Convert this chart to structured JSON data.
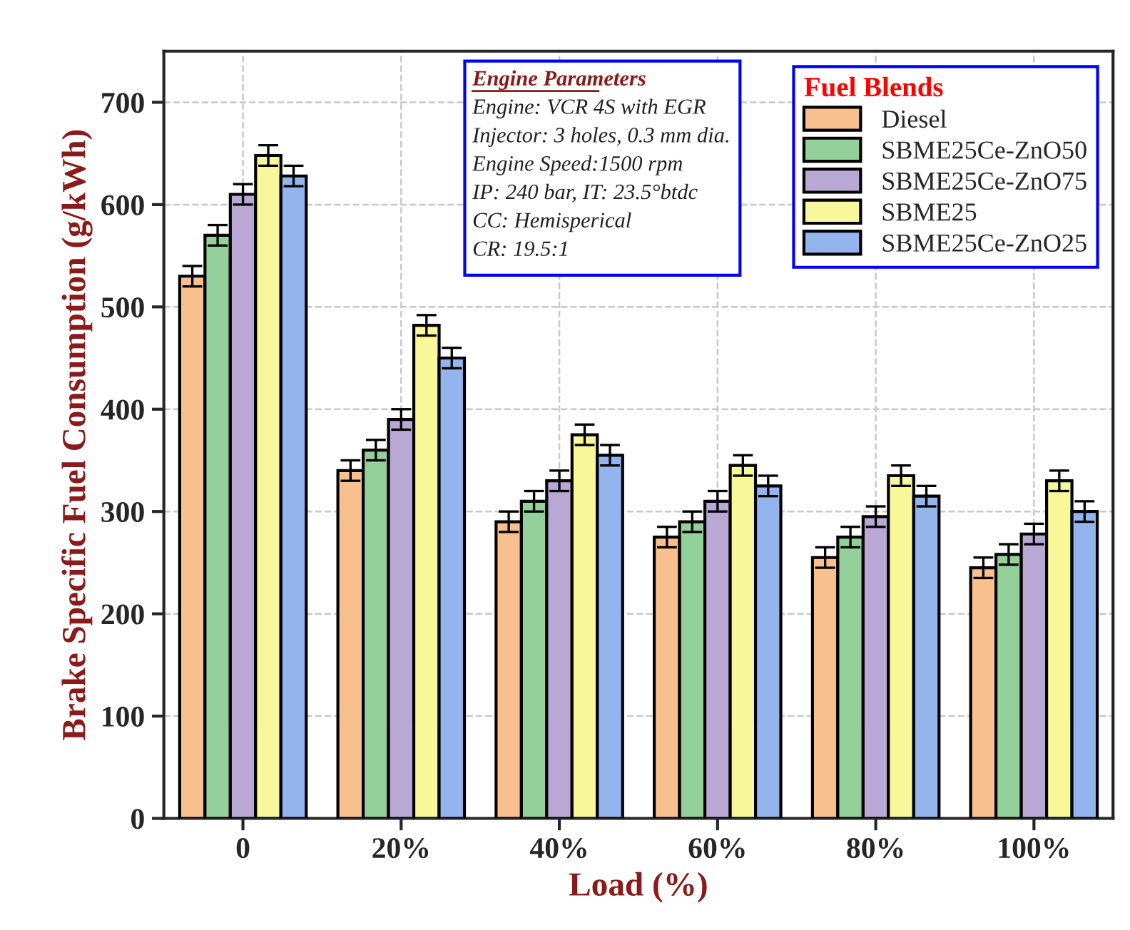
{
  "chart_data": {
    "type": "bar",
    "xlabel": "Load (%)",
    "ylabel": "Brake Specific Fuel Consumption (g/kWh)",
    "legend_title": "Fuel Blends",
    "categories": [
      "0",
      "20%",
      "40%",
      "60%",
      "80%",
      "100%"
    ],
    "series": [
      {
        "name": "Diesel",
        "color": "#f9c08f",
        "values": [
          530,
          340,
          290,
          275,
          255,
          245
        ],
        "errors": [
          10,
          10,
          10,
          10,
          10,
          10
        ]
      },
      {
        "name": "SBME25Ce-ZnO50",
        "color": "#93d09a",
        "values": [
          570,
          360,
          310,
          290,
          275,
          258
        ],
        "errors": [
          10,
          10,
          10,
          10,
          10,
          10
        ]
      },
      {
        "name": "SBME25Ce-ZnO75",
        "color": "#b9a8d4",
        "values": [
          610,
          390,
          330,
          310,
          295,
          278
        ],
        "errors": [
          10,
          10,
          10,
          10,
          10,
          10
        ]
      },
      {
        "name": "SBME25",
        "color": "#f8f79a",
        "values": [
          648,
          482,
          375,
          345,
          335,
          330
        ],
        "errors": [
          10,
          10,
          10,
          10,
          10,
          10
        ]
      },
      {
        "name": "SBME25Ce-ZnO25",
        "color": "#93b4ec",
        "values": [
          628,
          450,
          355,
          325,
          315,
          300
        ],
        "errors": [
          10,
          10,
          10,
          10,
          10,
          10
        ]
      }
    ],
    "ylim": [
      0,
      750
    ],
    "yticks": [
      0,
      100,
      200,
      300,
      400,
      500,
      600,
      700
    ],
    "grid": true,
    "legend": "top right",
    "annotations": [
      "Engine Parameters",
      "Engine: VCR 4S with EGR",
      "Injector: 3 holes, 0.3 mm dia.",
      "Engine Speed:1500 rpm",
      "IP: 240 bar, IT: 23.5°btdc",
      "CC: Hemisperical",
      "CR: 19.5:1"
    ]
  }
}
